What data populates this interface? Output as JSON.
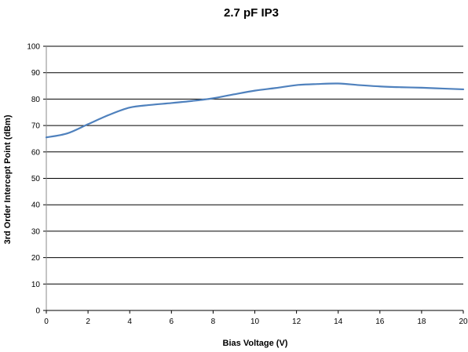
{
  "chart_data": {
    "type": "line",
    "title": "2.7 pF IP3",
    "xlabel": "Bias Voltage (V)",
    "ylabel": "3rd Order Intercept Point (dBm)",
    "xlim": [
      0,
      20
    ],
    "ylim": [
      0,
      100
    ],
    "xticks": [
      "0",
      "2",
      "4",
      "6",
      "8",
      "10",
      "12",
      "14",
      "16",
      "18",
      "20"
    ],
    "yticks": [
      "0",
      "10",
      "20",
      "30",
      "40",
      "50",
      "60",
      "70",
      "80",
      "90",
      "100"
    ],
    "grid": "horizontal",
    "legend": "none",
    "series": [
      {
        "color": "#4f81bd",
        "x": [
          0,
          1,
          2,
          3,
          4,
          5,
          6,
          7,
          8,
          9,
          10,
          11,
          12,
          13,
          14,
          15,
          16,
          17,
          18,
          19,
          20
        ],
        "y": [
          65.5,
          67,
          70.5,
          74,
          76.8,
          77.8,
          78.5,
          79.3,
          80.3,
          81.8,
          83.2,
          84.2,
          85.3,
          85.7,
          85.9,
          85.3,
          84.8,
          84.5,
          84.3,
          84.0,
          83.7
        ]
      }
    ]
  }
}
